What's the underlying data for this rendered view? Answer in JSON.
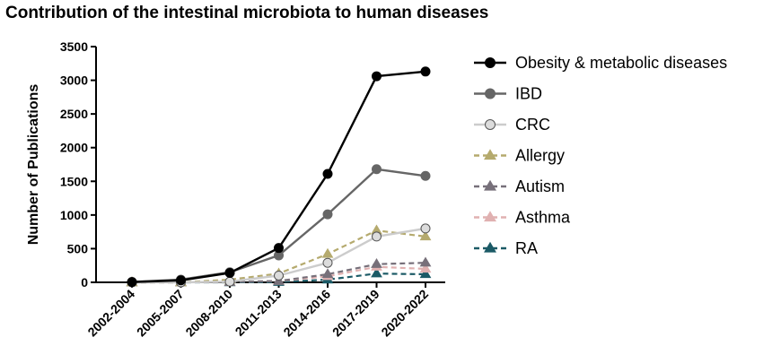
{
  "chart_data": {
    "type": "line",
    "title": "Contribution of the intestinal microbiota to human diseases",
    "xlabel": "",
    "ylabel": "Number of Publications",
    "ylim": [
      0,
      3500
    ],
    "yticks": [
      0,
      500,
      1000,
      1500,
      2000,
      2500,
      3000,
      3500
    ],
    "categories": [
      "2002-2004",
      "2005-2007",
      "2008-2010",
      "2011-2013",
      "2014-2016",
      "2017-2019",
      "2020-2022"
    ],
    "grid": false,
    "legend_position": "right",
    "series": [
      {
        "name": "Obesity & metabolic diseases",
        "values": [
          5,
          30,
          140,
          510,
          1610,
          3060,
          3130
        ],
        "color": "#000000",
        "marker": "circle",
        "fill": "#000000",
        "dashed": false
      },
      {
        "name": "IBD",
        "values": [
          5,
          40,
          150,
          400,
          1010,
          1680,
          1580
        ],
        "color": "#666666",
        "marker": "circle",
        "fill": "#666666",
        "dashed": false
      },
      {
        "name": "CRC",
        "values": [
          0,
          0,
          10,
          100,
          290,
          680,
          800
        ],
        "color": "#cccccc",
        "marker": "circle",
        "fill": "#dcdcdc",
        "dashed": false
      },
      {
        "name": "Allergy",
        "values": [
          0,
          0,
          40,
          130,
          420,
          770,
          680
        ],
        "color": "#b5aa6e",
        "marker": "triangle",
        "fill": "#b5aa6e",
        "dashed": true
      },
      {
        "name": "Autism",
        "values": [
          0,
          0,
          5,
          20,
          120,
          270,
          290
        ],
        "color": "#77707a",
        "marker": "triangle",
        "fill": "#77707a",
        "dashed": true
      },
      {
        "name": "Asthma",
        "values": [
          0,
          0,
          5,
          20,
          90,
          230,
          200
        ],
        "color": "#e0b1b1",
        "marker": "triangle",
        "fill": "#e0b1b1",
        "dashed": true
      },
      {
        "name": "RA",
        "values": [
          0,
          0,
          0,
          5,
          40,
          130,
          120
        ],
        "color": "#1b5a66",
        "marker": "triangle",
        "fill": "#1b5a66",
        "dashed": true
      }
    ]
  }
}
